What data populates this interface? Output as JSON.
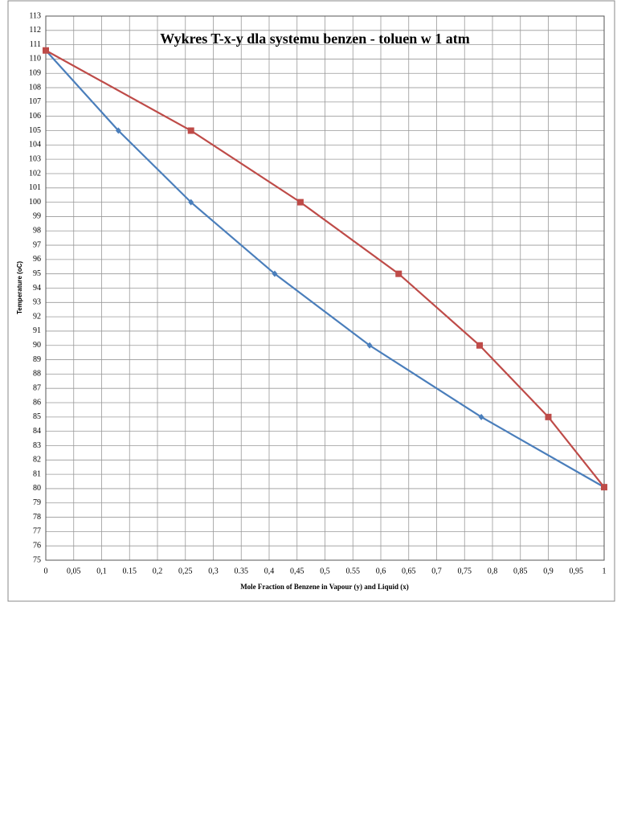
{
  "chart_data": {
    "type": "line",
    "title": "Wykres T-x-y dla systemu benzen - toluen w 1 atm",
    "y_label": "Temperature (oC)",
    "x_label": "Mole Fraction of Benzene in Vapour (y) and Liquid (x)",
    "series": [
      {
        "color": "#4a7ebb",
        "marker": "diamond",
        "x": [
          0,
          0.13,
          0.26,
          0.41,
          0.58,
          0.78,
          1
        ],
        "values": [
          110.6,
          105,
          100,
          95,
          90,
          85,
          80.1
        ]
      },
      {
        "color": "#be4b48",
        "marker": "square",
        "x": [
          0,
          0.26,
          0.456,
          0.632,
          0.777,
          0.9,
          1
        ],
        "values": [
          110.6,
          105,
          100,
          95,
          90,
          85,
          80.1
        ]
      }
    ],
    "xlim": [
      0,
      1
    ],
    "xticks": [
      0,
      {
        "value": 0.05,
        "label": "0,05"
      },
      {
        "value": 0.1,
        "label": "0,1"
      },
      {
        "value": 0.15,
        "label": "0.15"
      },
      {
        "value": 0.2,
        "label": "0,2"
      },
      {
        "value": 0.25,
        "label": "0,25"
      },
      {
        "value": 0.3,
        "label": "0,3"
      },
      {
        "value": 0.35,
        "label": "0.35"
      },
      {
        "value": 0.4,
        "label": "0,4"
      },
      {
        "value": 0.45,
        "label": "0,45"
      },
      {
        "value": 0.5,
        "label": "0,5"
      },
      {
        "value": 0.55,
        "label": "0.55"
      },
      {
        "value": 0.6,
        "label": "0,6"
      },
      {
        "value": 0.65,
        "label": "0,65"
      },
      {
        "value": 0.7,
        "label": "0,7"
      },
      {
        "value": 0.75,
        "label": "0,75"
      },
      {
        "value": 0.8,
        "label": "0,8"
      },
      {
        "value": 0.85,
        "label": "0,85"
      },
      {
        "value": 0.9,
        "label": "0,9"
      },
      {
        "value": 0.95,
        "label": "0,95"
      },
      1
    ],
    "ylim": [
      75,
      113
    ],
    "yticks": [
      75,
      76,
      77,
      78,
      79,
      80,
      81,
      82,
      83,
      84,
      85,
      86,
      87,
      88,
      89,
      90,
      91,
      92,
      93,
      94,
      95,
      96,
      97,
      98,
      99,
      100,
      101,
      102,
      103,
      104,
      105,
      106,
      107,
      108,
      109,
      110,
      111,
      112,
      113
    ],
    "grid": true
  }
}
